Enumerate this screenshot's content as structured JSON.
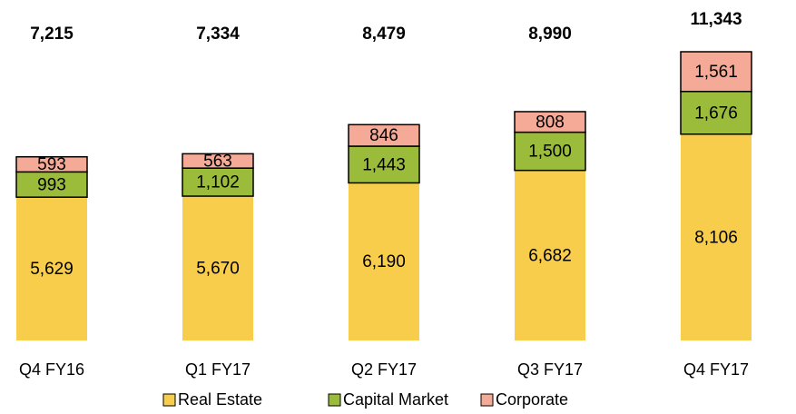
{
  "chart_data": {
    "type": "stacked_bar",
    "categories": [
      "Q4 FY16",
      "Q1 FY17",
      "Q2 FY17",
      "Q3 FY17",
      "Q4 FY17"
    ],
    "series": [
      {
        "name": "Real Estate",
        "color": "#f8cd4b",
        "values": [
          5629,
          5670,
          6190,
          6682,
          8106
        ],
        "value_labels": [
          "5,629",
          "5,670",
          "6,190",
          "6,682",
          "8,106"
        ]
      },
      {
        "name": "Capital Market",
        "color": "#9bbb3b",
        "values": [
          993,
          1102,
          1443,
          1500,
          1676
        ],
        "value_labels": [
          "993",
          "1,102",
          "1,443",
          "1,500",
          "1,676"
        ]
      },
      {
        "name": "Corporate",
        "color": "#f4aa96",
        "values": [
          593,
          563,
          846,
          808,
          1561
        ],
        "value_labels": [
          "593",
          "563",
          "846",
          "808",
          "1,561"
        ]
      }
    ],
    "totals": [
      7215,
      7334,
      8479,
      8990,
      11343
    ],
    "total_labels": [
      "7,215",
      "7,334",
      "8,479",
      "8,990",
      "11,343"
    ]
  }
}
